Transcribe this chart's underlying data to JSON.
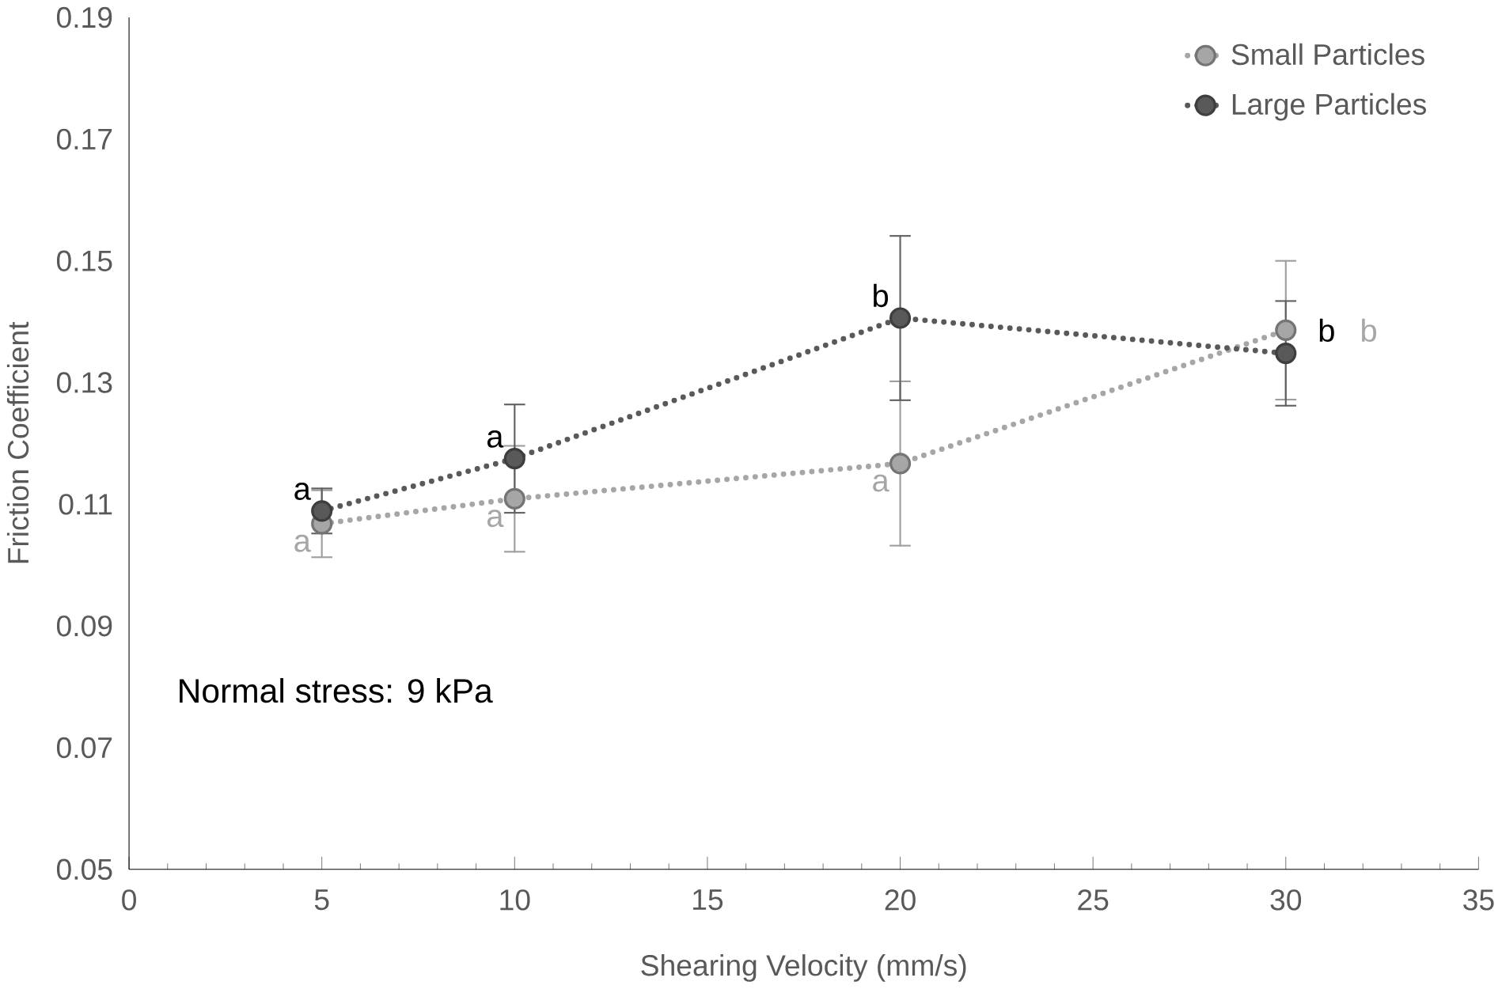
{
  "chart_data": {
    "type": "line",
    "xlabel": "Shearing Velocity (mm/s)",
    "ylabel": "Friction Coefficient",
    "x": [
      5,
      10,
      20,
      30
    ],
    "series": [
      {
        "name": "Small Particles",
        "color": "#a6a6a6",
        "values": [
          0.1068,
          0.1109,
          0.1167,
          0.1386
        ],
        "errors": [
          0.0055,
          0.0087,
          0.0135,
          0.0114
        ]
      },
      {
        "name": "Large Particles",
        "color": "#595959",
        "values": [
          0.1089,
          0.1175,
          0.1406,
          0.1348
        ],
        "errors": [
          0.0037,
          0.0089,
          0.0135,
          0.0086
        ]
      }
    ],
    "xlim": [
      0,
      35
    ],
    "xticks": [
      0,
      5,
      10,
      15,
      20,
      25,
      30,
      35
    ],
    "ylim": [
      0.05,
      0.19
    ],
    "yticks": [
      0.05,
      0.07,
      0.09,
      0.11,
      0.13,
      0.15,
      0.17,
      0.19
    ],
    "marker": "circle",
    "line_style": "dotted",
    "legend": "top right",
    "grid": false,
    "annotations": [
      {
        "text": "a",
        "x": 5,
        "y": 0.1068
      },
      {
        "text": "a",
        "x": 5,
        "y": 0.1089
      },
      {
        "text": "a",
        "x": 10,
        "y": 0.1109
      },
      {
        "text": "a",
        "x": 10,
        "y": 0.1175
      },
      {
        "text": "a",
        "x": 20,
        "y": 0.1167
      },
      {
        "text": "b",
        "x": 20,
        "y": 0.1406
      },
      {
        "text": "b",
        "x": 30,
        "y": 0.1386
      },
      {
        "text": "b",
        "x": 30,
        "y": 0.1348
      },
      "Normal stress: 9 kPa"
    ]
  }
}
